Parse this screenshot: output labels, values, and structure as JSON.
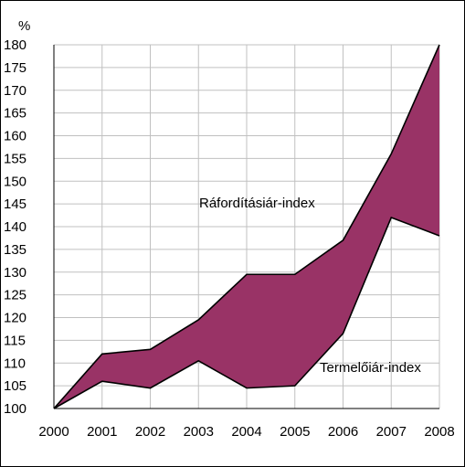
{
  "chart_data": {
    "type": "area",
    "ylabel": "%",
    "x": [
      "2000",
      "2001",
      "2002",
      "2003",
      "2004",
      "2005",
      "2006",
      "2007",
      "2008"
    ],
    "series": [
      {
        "name": "Ráfordításiár-index",
        "values": [
          100,
          112,
          113,
          119.5,
          129.5,
          129.5,
          137,
          156,
          180
        ]
      },
      {
        "name": "Termelőiár-index",
        "values": [
          100,
          106,
          104.5,
          110.5,
          104.5,
          105,
          116.5,
          142,
          138
        ]
      }
    ],
    "ylim": [
      100,
      180
    ],
    "yticks": [
      100,
      105,
      110,
      115,
      120,
      125,
      130,
      135,
      140,
      145,
      150,
      155,
      160,
      165,
      170,
      175,
      180
    ],
    "grid": true,
    "fill_color": "#993366",
    "grid_color": "#c0c0c0",
    "annotations": [
      "Ráfordításiár-index",
      "Termelőiár-index"
    ]
  }
}
